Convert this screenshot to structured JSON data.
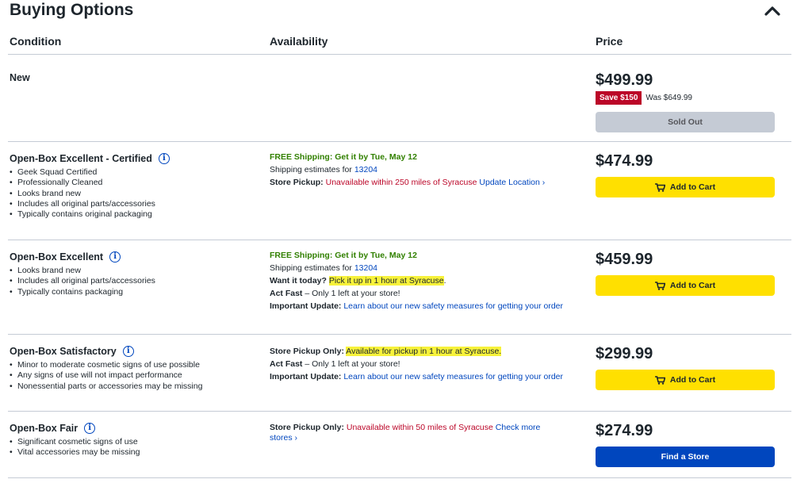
{
  "section": {
    "title": "Buying Options"
  },
  "columns": {
    "condition": "Condition",
    "availability": "Availability",
    "price": "Price"
  },
  "colors": {
    "accent_yellow": "#ffe000",
    "blue": "#0046be",
    "save_red": "#bb0628",
    "shipping_green": "#318000",
    "highlight": "#f7f23a"
  },
  "icons": {
    "collapse": "chevron-up-icon",
    "info": "info-icon",
    "cart": "cart-icon"
  },
  "options": [
    {
      "condition": "New",
      "price": "$499.99",
      "save": "Save $150",
      "was": "Was $649.99",
      "button": "Sold Out"
    },
    {
      "condition": "Open-Box Excellent - Certified",
      "bullets": [
        "Geek Squad Certified",
        "Professionally Cleaned",
        "Looks brand new",
        "Includes all original parts/accessories",
        "Typically contains original packaging"
      ],
      "shipping": "FREE Shipping: Get it by Tue, May 12",
      "ship_est_label": "Shipping estimates for",
      "zip": "13204",
      "pickup_label": "Store Pickup:",
      "pickup_status": "Unavailable within 250 miles of Syracuse",
      "pickup_link": "Update Location ›",
      "price": "$474.99",
      "button": "Add to Cart"
    },
    {
      "condition": "Open-Box Excellent",
      "bullets": [
        "Looks brand new",
        "Includes all original parts/accessories",
        "Typically contains packaging"
      ],
      "shipping": "FREE Shipping: Get it by Tue, May 12",
      "ship_est_label": "Shipping estimates for",
      "zip": "13204",
      "want_label": "Want it today?",
      "want_text": "Pick it up in 1 hour at Syracuse",
      "want_end": ".",
      "act_fast_label": "Act Fast",
      "act_fast_text": " – Only 1 left at your store!",
      "update_label": "Important Update:",
      "update_link": "Learn about our new safety measures for getting your order",
      "price": "$459.99",
      "button": "Add to Cart"
    },
    {
      "condition": "Open-Box Satisfactory",
      "bullets": [
        "Minor to moderate cosmetic signs of use possible",
        "Any signs of use will not impact performance",
        "Nonessential parts or accessories may be missing"
      ],
      "pickup_only_label": "Store Pickup Only:",
      "pickup_only_text": "Available for pickup in 1 hour at Syracuse.",
      "act_fast_label": "Act Fast",
      "act_fast_text": " – Only 1 left at your store!",
      "update_label": "Important Update:",
      "update_link": "Learn about our new safety measures for getting your order",
      "price": "$299.99",
      "button": "Add to Cart"
    },
    {
      "condition": "Open-Box Fair",
      "bullets": [
        "Significant cosmetic signs of use",
        "Vital accessories may be missing"
      ],
      "pickup_only_label": "Store Pickup Only:",
      "pickup_only_text": "Unavailable within 50 miles of Syracuse",
      "pickup_link": "Check more stores ›",
      "price": "$274.99",
      "button": "Find a Store"
    }
  ]
}
